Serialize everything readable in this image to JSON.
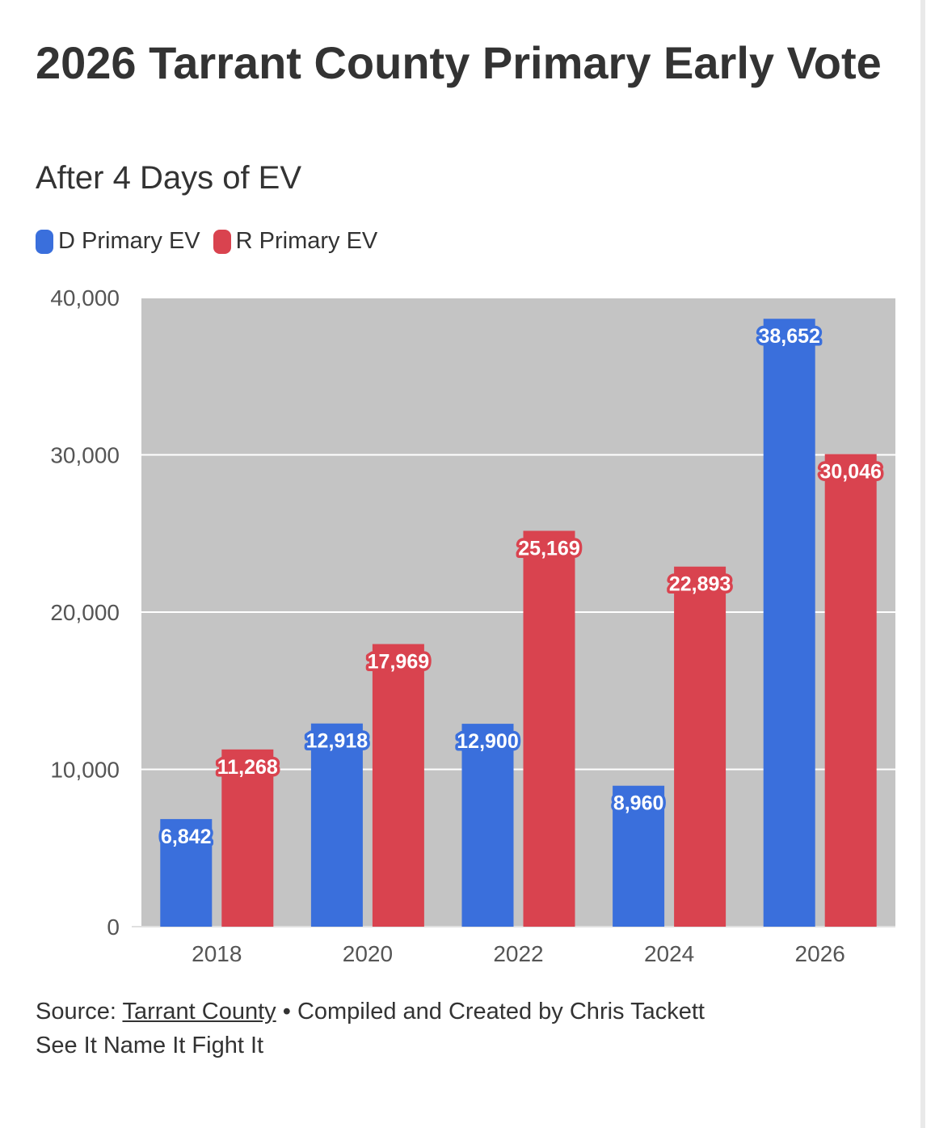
{
  "chart_data": {
    "type": "bar",
    "title": "2026 Tarrant County Primary Early Vote",
    "subtitle": "After 4 Days of EV",
    "categories": [
      "2018",
      "2020",
      "2022",
      "2024",
      "2026"
    ],
    "series": [
      {
        "name": "D Primary EV",
        "color": "#3a6fdc",
        "values": [
          6842,
          12918,
          12900,
          8960,
          38652
        ],
        "labels": [
          "6,842",
          "12,918",
          "12,900",
          "8,960",
          "38,652"
        ]
      },
      {
        "name": "R Primary EV",
        "color": "#d9434f",
        "values": [
          11268,
          17969,
          25169,
          22893,
          30046
        ],
        "labels": [
          "11,268",
          "17,969",
          "25,169",
          "22,893",
          "30,046"
        ]
      }
    ],
    "ylim": [
      0,
      40000
    ],
    "yticks": [
      0,
      10000,
      20000,
      30000,
      40000
    ],
    "ytick_labels": [
      "0",
      "10,000",
      "20,000",
      "30,000",
      "40,000"
    ],
    "xlabel": "",
    "ylabel": "",
    "grid": true,
    "plot_background": "#c4c4c4",
    "legend_position": "top-left"
  },
  "footer": {
    "source_prefix": "Source: ",
    "source_link": "Tarrant County",
    "source_suffix": " • Compiled and Created by Chris Tackett",
    "tagline": "See It Name It Fight It"
  }
}
